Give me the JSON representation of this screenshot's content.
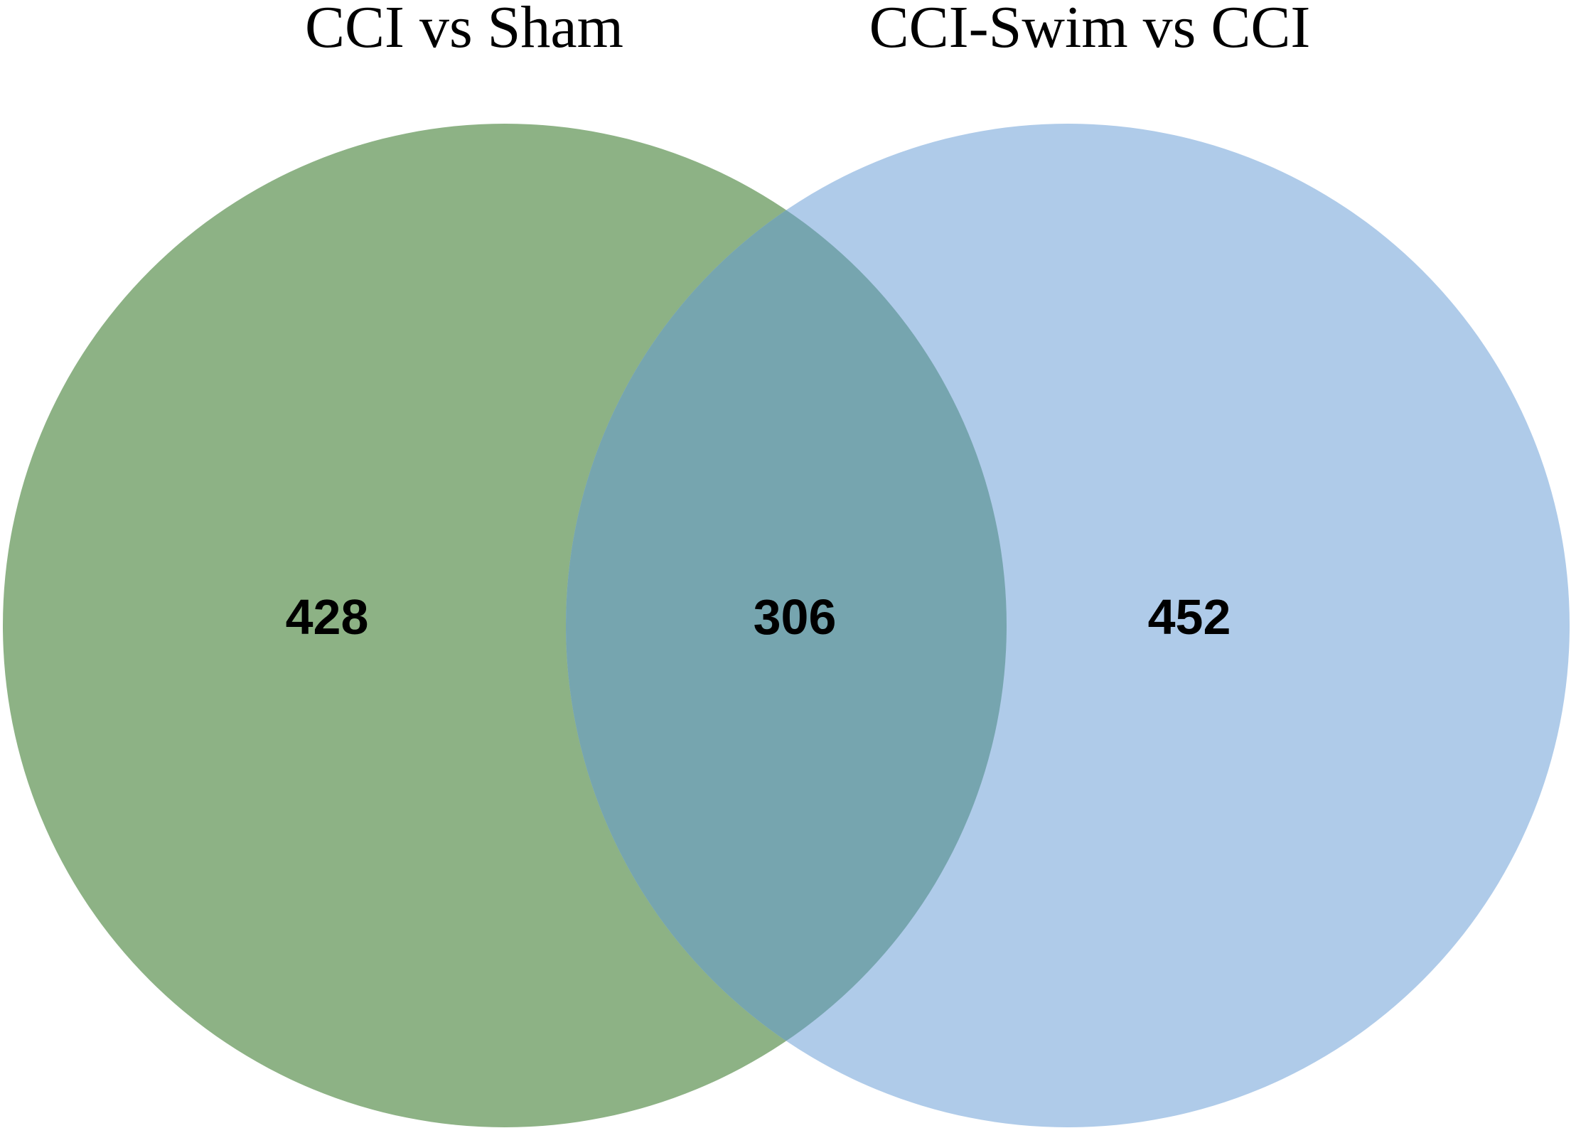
{
  "diagram": {
    "type": "venn",
    "sets": [
      {
        "name": "CCI vs Sham",
        "color": "#8db285"
      },
      {
        "name": "CCI-Swim vs CCI",
        "color": "#afcbe9"
      }
    ],
    "overlap_color": "#76a5af",
    "counts": {
      "left_only": "428",
      "intersection": "306",
      "right_only": "452"
    }
  }
}
